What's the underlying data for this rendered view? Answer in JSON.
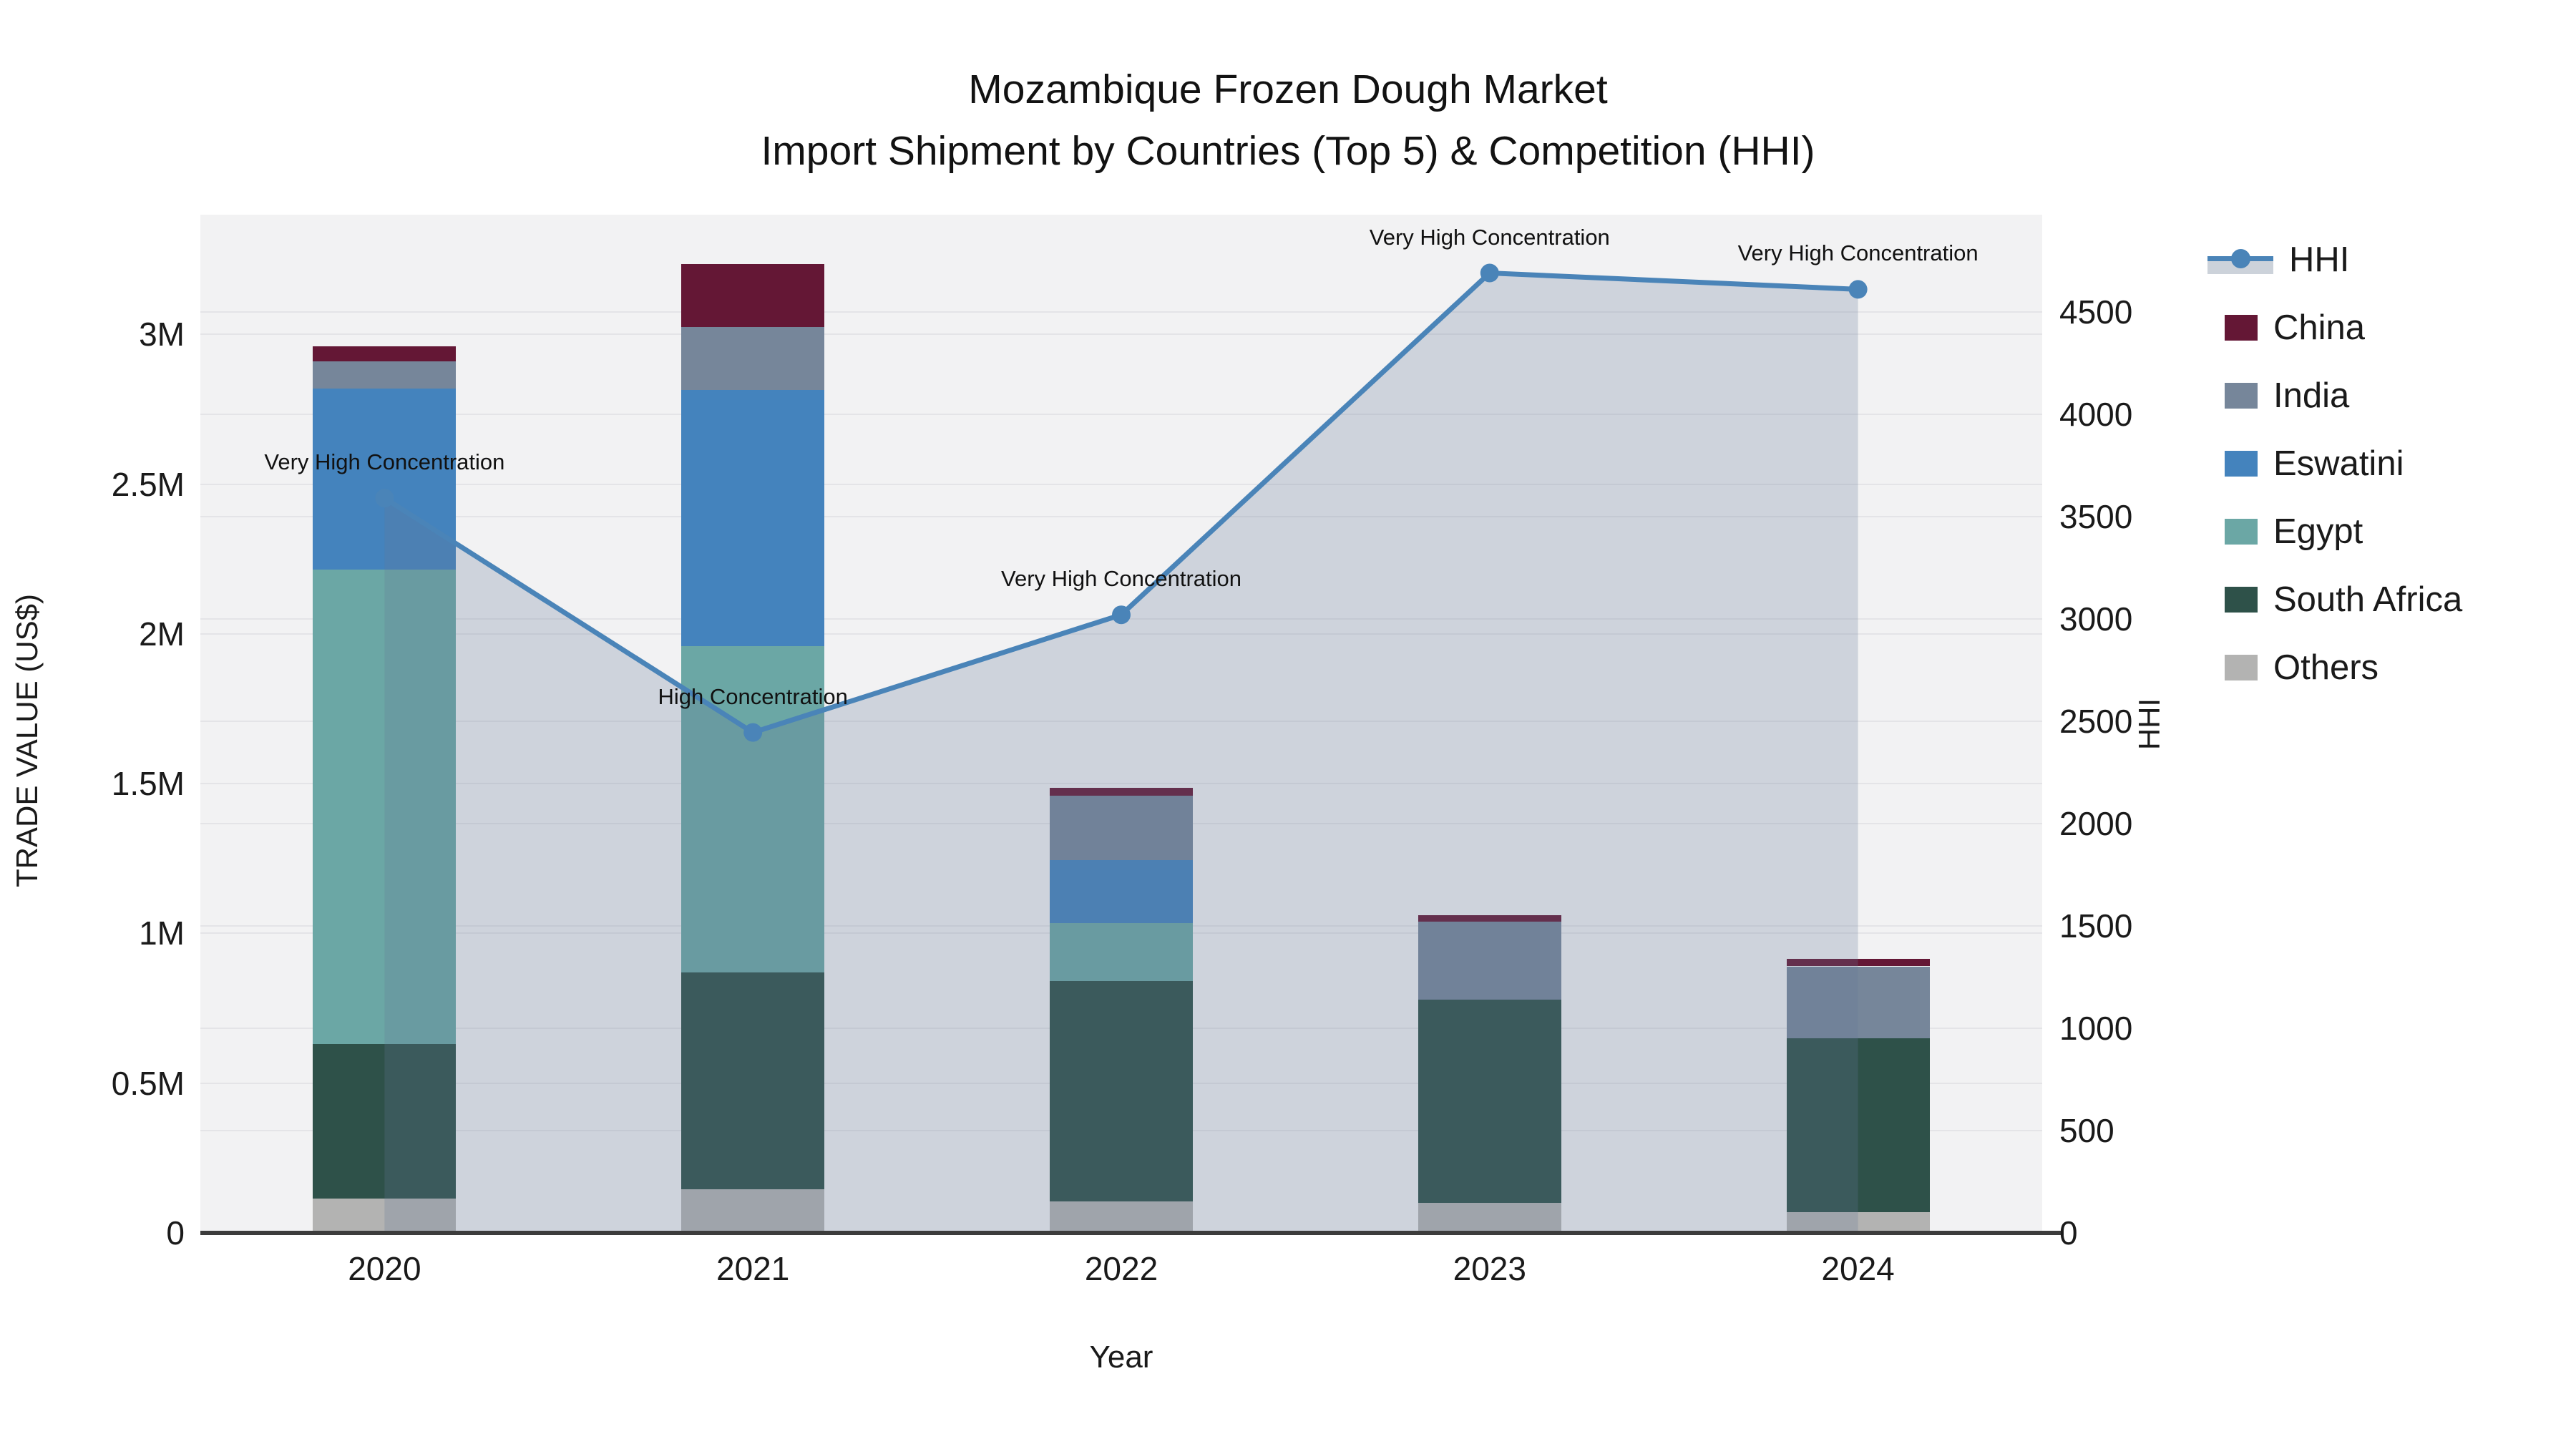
{
  "title": {
    "line1": "Mozambique Frozen Dough Market",
    "line2": "Import Shipment by Countries (Top 5) & Competition (HHI)"
  },
  "axes": {
    "x": {
      "title": "Year",
      "categories": [
        "2020",
        "2021",
        "2022",
        "2023",
        "2024"
      ]
    },
    "y_left": {
      "title": "TRADE VALUE (US$)",
      "tick_labels": [
        "0",
        "0.5M",
        "1M",
        "1.5M",
        "2M",
        "2.5M",
        "3M"
      ],
      "tick_values": [
        0,
        500000,
        1000000,
        1500000,
        2000000,
        2500000,
        3000000
      ],
      "range": [
        0,
        3400000
      ]
    },
    "y_right": {
      "title": "HHI",
      "tick_labels": [
        "0",
        "500",
        "1000",
        "1500",
        "2000",
        "2500",
        "3000",
        "3500",
        "4000",
        "4500"
      ],
      "tick_values": [
        0,
        500,
        1000,
        1500,
        2000,
        2500,
        3000,
        3500,
        4000,
        4500
      ],
      "range": [
        0,
        4975
      ]
    }
  },
  "legend": {
    "items": [
      {
        "label": "HHI",
        "type": "line",
        "color": "#4a84b8",
        "fill": "#ccd2da"
      },
      {
        "label": "China",
        "type": "swatch",
        "color": "#641735"
      },
      {
        "label": "India",
        "type": "swatch",
        "color": "#76869a"
      },
      {
        "label": "Eswatini",
        "type": "swatch",
        "color": "#4483bd"
      },
      {
        "label": "Egypt",
        "type": "swatch",
        "color": "#6ba7a5"
      },
      {
        "label": "South Africa",
        "type": "swatch",
        "color": "#2e5149"
      },
      {
        "label": "Others",
        "type": "swatch",
        "color": "#b3b3b2"
      }
    ]
  },
  "chart_data": {
    "type": "combo: stacked bar (left axis) + line with area fill (right axis)",
    "categories": [
      "2020",
      "2021",
      "2022",
      "2023",
      "2024"
    ],
    "bar_series_bottom_to_top": [
      {
        "name": "Others",
        "color": "#b3b3b2",
        "values": [
          115000,
          145000,
          105000,
          100000,
          70000
        ]
      },
      {
        "name": "South Africa",
        "color": "#2e5149",
        "values": [
          515000,
          725000,
          735000,
          680000,
          580000
        ]
      },
      {
        "name": "Egypt",
        "color": "#6ba7a5",
        "values": [
          1585000,
          1090000,
          195000,
          0,
          0
        ]
      },
      {
        "name": "Eswatini",
        "color": "#4483bd",
        "values": [
          605000,
          855000,
          210000,
          0,
          0
        ]
      },
      {
        "name": "India",
        "color": "#76869a",
        "values": [
          90000,
          210000,
          215000,
          260000,
          240000
        ]
      },
      {
        "name": "China",
        "color": "#641735",
        "values": [
          50000,
          210000,
          25000,
          20000,
          25000
        ]
      }
    ],
    "line_series": {
      "name": "HHI",
      "color": "#4a84b8",
      "area_fill": "rgba(100,120,150,0.25)",
      "values": [
        3590,
        2445,
        3020,
        4690,
        4610
      ]
    },
    "point_annotations": [
      "Very High Concentration",
      "High Concentration",
      "Very High Concentration",
      "Very High Concentration",
      "Very High Concentration"
    ],
    "xlabel": "Year",
    "ylabel_left": "TRADE VALUE (US$)",
    "ylabel_right": "HHI",
    "ylim_left": [
      0,
      3400000
    ],
    "ylim_right": [
      0,
      4975
    ],
    "grid": true,
    "legend_position": "right"
  }
}
